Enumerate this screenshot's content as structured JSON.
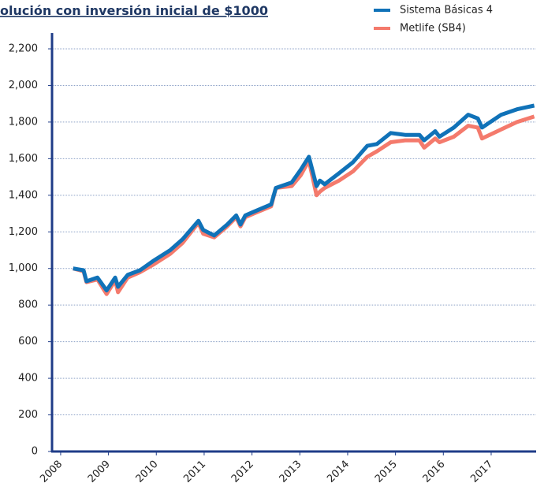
{
  "chart_data": {
    "type": "line",
    "title": "olución con inversión inicial de $1000",
    "x": [
      2008.26,
      2008.48,
      2008.54,
      2008.77,
      2008.96,
      2009.14,
      2009.2,
      2009.4,
      2009.66,
      2009.93,
      2010.29,
      2010.55,
      2010.88,
      2010.98,
      2011.21,
      2011.48,
      2011.67,
      2011.76,
      2011.86,
      2012.04,
      2012.4,
      2012.5,
      2012.83,
      2013.02,
      2013.19,
      2013.35,
      2013.42,
      2013.52,
      2013.82,
      2014.11,
      2014.41,
      2014.61,
      2014.9,
      2015.2,
      2015.5,
      2015.6,
      2015.83,
      2015.92,
      2016.22,
      2016.52,
      2016.72,
      2016.81,
      2017.21,
      2017.54,
      2017.9
    ],
    "series": [
      {
        "name": "Sistema Básicas 4",
        "color": "#1072b8",
        "values": [
          1000,
          990,
          930,
          950,
          880,
          950,
          900,
          965,
          990,
          1040,
          1100,
          1160,
          1260,
          1210,
          1180,
          1240,
          1290,
          1240,
          1290,
          1310,
          1350,
          1440,
          1470,
          1540,
          1610,
          1450,
          1480,
          1460,
          1520,
          1580,
          1670,
          1680,
          1740,
          1730,
          1730,
          1700,
          1750,
          1720,
          1770,
          1840,
          1820,
          1770,
          1840,
          1870,
          1890
        ]
      },
      {
        "name": "Metlife (SB4)",
        "color": "#f47a6c",
        "values": [
          1000,
          985,
          925,
          940,
          860,
          935,
          870,
          950,
          980,
          1020,
          1080,
          1140,
          1250,
          1190,
          1170,
          1230,
          1280,
          1230,
          1280,
          1300,
          1340,
          1440,
          1450,
          1510,
          1590,
          1400,
          1420,
          1440,
          1480,
          1530,
          1610,
          1640,
          1690,
          1700,
          1700,
          1660,
          1710,
          1690,
          1720,
          1780,
          1770,
          1710,
          1760,
          1800,
          1830
        ]
      }
    ],
    "xlim": [
      2007.82,
      2017.94
    ],
    "xticks": [
      2008,
      2009,
      2010,
      2011,
      2012,
      2013,
      2014,
      2015,
      2016,
      2017
    ],
    "ylim": [
      0,
      2200
    ],
    "yticks": [
      0,
      200,
      400,
      600,
      800,
      {
        "value": 1000,
        "label": "1,000"
      },
      {
        "value": 1200,
        "label": "1,200"
      },
      {
        "value": 1400,
        "label": "1,400"
      },
      {
        "value": 1600,
        "label": "1,600"
      },
      {
        "value": 1800,
        "label": "1,800"
      },
      {
        "value": 2000,
        "label": "2,000"
      },
      {
        "value": 2200,
        "label": "2,200"
      }
    ],
    "grid": true,
    "legend": "top-right"
  }
}
